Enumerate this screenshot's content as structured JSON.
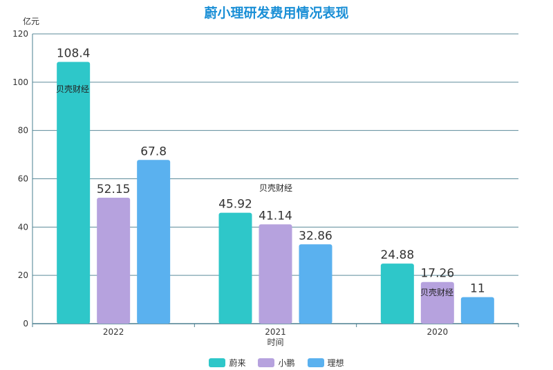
{
  "chart_data": {
    "type": "bar",
    "title": "蔚小理研发费用情况表现",
    "ylabel": "亿元",
    "xlabel": "时间",
    "ylim": [
      0,
      120
    ],
    "yticks": [
      0,
      20,
      40,
      60,
      80,
      100,
      120
    ],
    "categories": [
      "2022",
      "2021",
      "2020"
    ],
    "series": [
      {
        "name": "蔚来",
        "color": "#2ec7c9",
        "values": [
          108.4,
          45.92,
          24.88
        ],
        "labels": [
          "108.4",
          "45.92",
          "24.88"
        ]
      },
      {
        "name": "小鹏",
        "color": "#b6a2de",
        "values": [
          52.15,
          41.14,
          17.26
        ],
        "labels": [
          "52.15",
          "41.14",
          "17.26"
        ]
      },
      {
        "name": "理想",
        "color": "#5ab1ef",
        "values": [
          67.8,
          32.86,
          11
        ],
        "labels": [
          "67.8",
          "32.86",
          "11"
        ]
      }
    ],
    "grid": true,
    "legend_position": "bottom-center"
  },
  "watermark": "贝壳财经"
}
